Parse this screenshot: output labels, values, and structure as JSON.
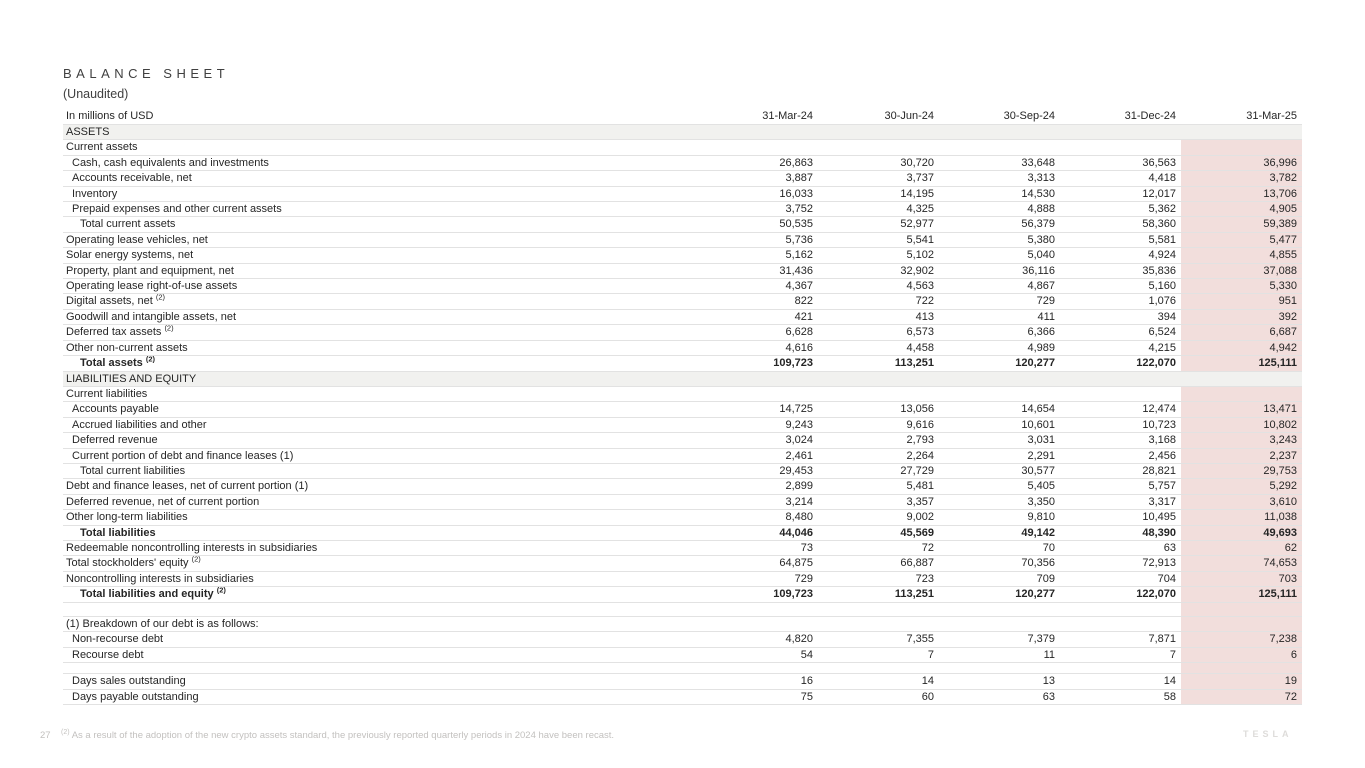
{
  "header": {
    "title": "BALANCE SHEET",
    "subtitle": "(Unaudited)"
  },
  "table": {
    "units_label": "In millions of USD",
    "columns": [
      "31-Mar-24",
      "30-Jun-24",
      "30-Sep-24",
      "31-Dec-24",
      "31-Mar-25"
    ],
    "rows": [
      {
        "label": "ASSETS",
        "style": "section"
      },
      {
        "label": "Current assets",
        "indent": 0,
        "values": []
      },
      {
        "label": "Cash, cash equivalents and investments",
        "indent": 1,
        "values": [
          "26,863",
          "30,720",
          "33,648",
          "36,563",
          "36,996"
        ]
      },
      {
        "label": "Accounts receivable, net",
        "indent": 1,
        "values": [
          "3,887",
          "3,737",
          "3,313",
          "4,418",
          "3,782"
        ]
      },
      {
        "label": "Inventory",
        "indent": 1,
        "values": [
          "16,033",
          "14,195",
          "14,530",
          "12,017",
          "13,706"
        ]
      },
      {
        "label": "Prepaid expenses and other current assets",
        "indent": 1,
        "values": [
          "3,752",
          "4,325",
          "4,888",
          "5,362",
          "4,905"
        ]
      },
      {
        "label": "Total current assets",
        "indent": 2,
        "values": [
          "50,535",
          "52,977",
          "56,379",
          "58,360",
          "59,389"
        ]
      },
      {
        "label": "Operating lease vehicles, net",
        "indent": 0,
        "values": [
          "5,736",
          "5,541",
          "5,380",
          "5,581",
          "5,477"
        ]
      },
      {
        "label": "Solar energy systems, net",
        "indent": 0,
        "values": [
          "5,162",
          "5,102",
          "5,040",
          "4,924",
          "4,855"
        ]
      },
      {
        "label": "Property, plant and equipment, net",
        "indent": 0,
        "values": [
          "31,436",
          "32,902",
          "36,116",
          "35,836",
          "37,088"
        ]
      },
      {
        "label": "Operating lease right-of-use assets",
        "indent": 0,
        "values": [
          "4,367",
          "4,563",
          "4,867",
          "5,160",
          "5,330"
        ]
      },
      {
        "label": "Digital assets, net",
        "sup": "(2)",
        "indent": 0,
        "values": [
          "822",
          "722",
          "729",
          "1,076",
          "951"
        ]
      },
      {
        "label": "Goodwill and intangible assets, net",
        "indent": 0,
        "values": [
          "421",
          "413",
          "411",
          "394",
          "392"
        ]
      },
      {
        "label": "Deferred tax assets",
        "sup": "(2)",
        "indent": 0,
        "values": [
          "6,628",
          "6,573",
          "6,366",
          "6,524",
          "6,687"
        ]
      },
      {
        "label": "Other non-current assets",
        "indent": 0,
        "values": [
          "4,616",
          "4,458",
          "4,989",
          "4,215",
          "4,942"
        ]
      },
      {
        "label": "Total assets",
        "sup": "(2)",
        "indent": 2,
        "style": "bold",
        "values": [
          "109,723",
          "113,251",
          "120,277",
          "122,070",
          "125,111"
        ]
      },
      {
        "label": "LIABILITIES AND EQUITY",
        "style": "section"
      },
      {
        "label": "Current liabilities",
        "indent": 0,
        "values": []
      },
      {
        "label": "Accounts payable",
        "indent": 1,
        "values": [
          "14,725",
          "13,056",
          "14,654",
          "12,474",
          "13,471"
        ]
      },
      {
        "label": "Accrued liabilities and other",
        "indent": 1,
        "values": [
          "9,243",
          "9,616",
          "10,601",
          "10,723",
          "10,802"
        ]
      },
      {
        "label": "Deferred revenue",
        "indent": 1,
        "values": [
          "3,024",
          "2,793",
          "3,031",
          "3,168",
          "3,243"
        ]
      },
      {
        "label": "Current portion of debt and finance leases (1)",
        "indent": 1,
        "values": [
          "2,461",
          "2,264",
          "2,291",
          "2,456",
          "2,237"
        ]
      },
      {
        "label": "Total current liabilities",
        "indent": 2,
        "values": [
          "29,453",
          "27,729",
          "30,577",
          "28,821",
          "29,753"
        ]
      },
      {
        "label": "Debt and finance leases, net of current portion (1)",
        "indent": 0,
        "values": [
          "2,899",
          "5,481",
          "5,405",
          "5,757",
          "5,292"
        ]
      },
      {
        "label": "Deferred revenue, net of current portion",
        "indent": 0,
        "values": [
          "3,214",
          "3,357",
          "3,350",
          "3,317",
          "3,610"
        ]
      },
      {
        "label": "Other long-term liabilities",
        "indent": 0,
        "values": [
          "8,480",
          "9,002",
          "9,810",
          "10,495",
          "11,038"
        ]
      },
      {
        "label": "Total liabilities",
        "indent": 2,
        "style": "bold",
        "values": [
          "44,046",
          "45,569",
          "49,142",
          "48,390",
          "49,693"
        ]
      },
      {
        "label": "Redeemable noncontrolling interests in subsidiaries",
        "indent": 0,
        "values": [
          "73",
          "72",
          "70",
          "63",
          "62"
        ]
      },
      {
        "label": "Total stockholders' equity",
        "sup": "(2)",
        "indent": 0,
        "values": [
          "64,875",
          "66,887",
          "70,356",
          "72,913",
          "74,653"
        ]
      },
      {
        "label": "Noncontrolling interests in subsidiaries",
        "indent": 0,
        "values": [
          "729",
          "723",
          "709",
          "704",
          "703"
        ]
      },
      {
        "label": "Total liabilities and equity",
        "sup": "(2)",
        "indent": 2,
        "style": "bold",
        "values": [
          "109,723",
          "113,251",
          "120,277",
          "122,070",
          "125,111"
        ]
      },
      {
        "label": "",
        "style": "blank",
        "values": []
      },
      {
        "label": "(1) Breakdown of our debt is as follows:",
        "indent": 0,
        "values": []
      },
      {
        "label": "Non-recourse debt",
        "indent": 1,
        "values": [
          "4,820",
          "7,355",
          "7,379",
          "7,871",
          "7,238"
        ]
      },
      {
        "label": "Recourse debt",
        "indent": 1,
        "values": [
          "54",
          "7",
          "11",
          "7",
          "6"
        ]
      },
      {
        "label": "",
        "style": "blank",
        "h": 11,
        "values": []
      },
      {
        "label": "Days sales outstanding",
        "indent": 1,
        "values": [
          "16",
          "14",
          "13",
          "14",
          "19"
        ]
      },
      {
        "label": "Days payable outstanding",
        "indent": 1,
        "values": [
          "75",
          "60",
          "63",
          "58",
          "72"
        ]
      }
    ]
  },
  "footer": {
    "page_number": "27",
    "footnote_marker": "(2)",
    "footnote_text": "As a result of the adoption of the new crypto assets standard, the previously reported quarterly periods in 2024 have been recast.",
    "logo_text": "TESLA"
  },
  "colors": {
    "highlight_column": "#f2dedc",
    "section_band": "#f1f1ef",
    "row_border": "#e2e2e2",
    "text": "#262626",
    "footer_text": "#c3c1bf",
    "logo_text": "#dedcda"
  }
}
